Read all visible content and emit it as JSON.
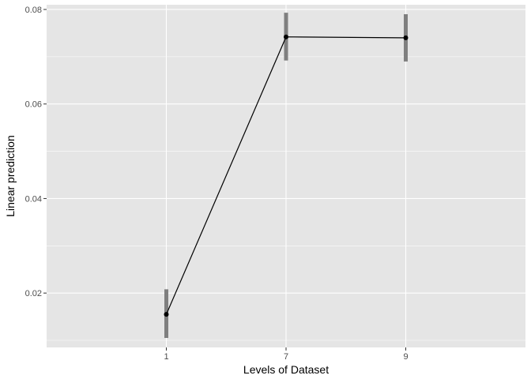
{
  "chart_data": {
    "type": "line",
    "xlabel": "Levels of Dataset",
    "ylabel": "Linear prediction",
    "categories": [
      "1",
      "7",
      "9"
    ],
    "series": [
      {
        "values": [
          0.0155,
          0.0742,
          0.074
        ],
        "ci_low": [
          0.0105,
          0.0692,
          0.069
        ],
        "ci_high": [
          0.0208,
          0.0793,
          0.079
        ]
      }
    ],
    "ylim": [
      0.0085,
      0.081
    ],
    "y_ticks": [
      0.02,
      0.04,
      0.06,
      0.08
    ],
    "y_tick_labels": [
      "0.02",
      "0.04",
      "0.06",
      "0.08"
    ],
    "grid": true,
    "legend": "none",
    "colors": {
      "panel_bg": "#e5e5e5",
      "grid_major": "#ffffff",
      "line": "#000000",
      "point": "#000000",
      "errorbar": "#7f7f7f"
    }
  }
}
